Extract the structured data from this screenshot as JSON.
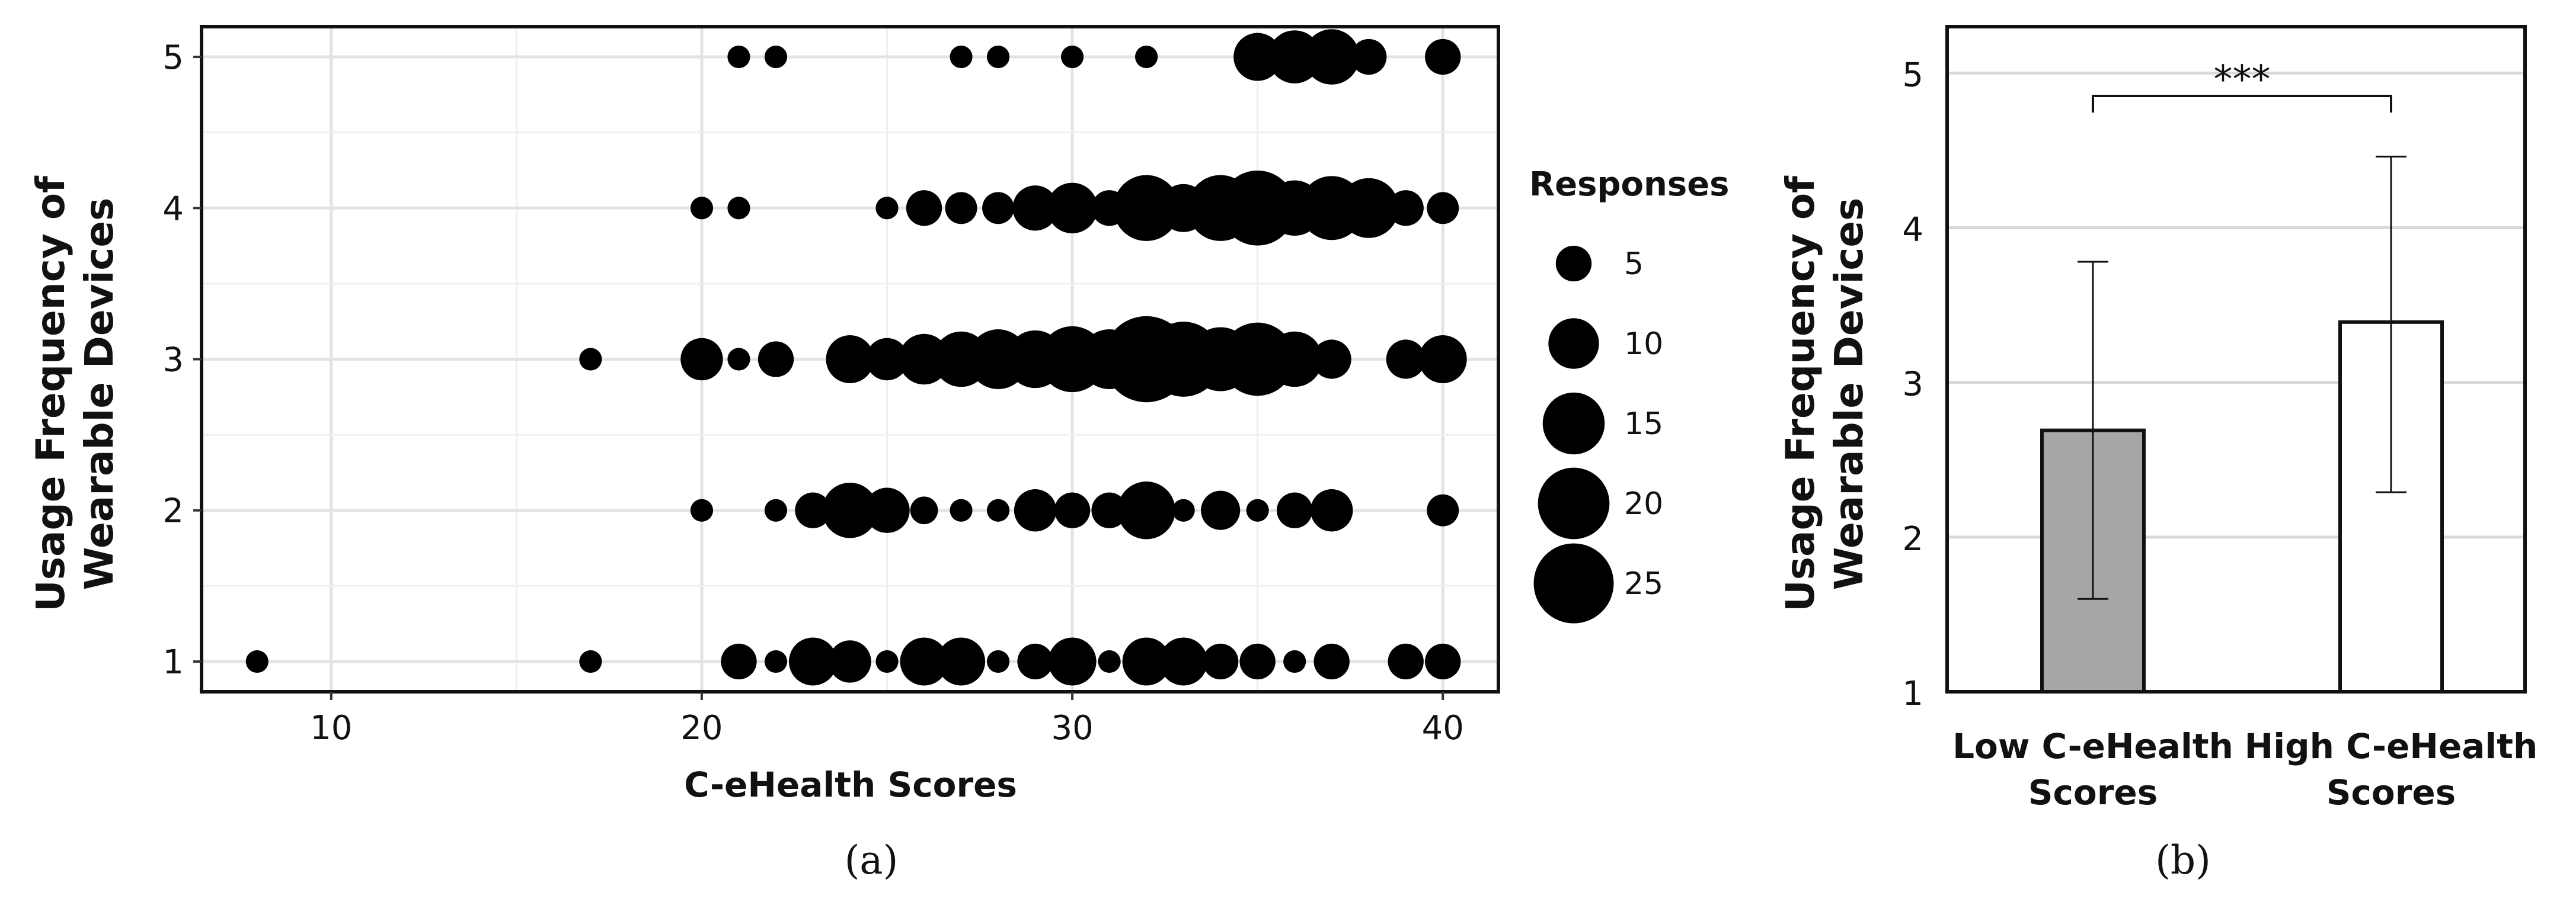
{
  "chart_data": [
    {
      "panel_label": "(a)",
      "type": "scatter",
      "xlabel": "C-eHealth Scores",
      "ylabel_lines": [
        "Usage Frequency of",
        "Wearable Devices"
      ],
      "xlim": [
        6.5,
        41.5
      ],
      "ylim": [
        0.8,
        5.2
      ],
      "xticks": [
        10,
        20,
        30,
        40
      ],
      "yticks": [
        1,
        2,
        3,
        4,
        5
      ],
      "grid": true,
      "legend": {
        "title": "Responses",
        "placement": "right",
        "sizes": [
          5,
          10,
          15,
          20,
          25
        ],
        "labels": [
          "5",
          "10",
          "15",
          "20",
          "25"
        ]
      },
      "points": [
        {
          "x": 21,
          "y": 5,
          "n": 2
        },
        {
          "x": 22,
          "y": 5,
          "n": 2
        },
        {
          "x": 27,
          "y": 5,
          "n": 2
        },
        {
          "x": 28,
          "y": 5,
          "n": 2
        },
        {
          "x": 30,
          "y": 5,
          "n": 2
        },
        {
          "x": 32,
          "y": 5,
          "n": 2
        },
        {
          "x": 35,
          "y": 5,
          "n": 9
        },
        {
          "x": 36,
          "y": 5,
          "n": 11
        },
        {
          "x": 37,
          "y": 5,
          "n": 12
        },
        {
          "x": 38,
          "y": 5,
          "n": 5
        },
        {
          "x": 40,
          "y": 5,
          "n": 5
        },
        {
          "x": 20,
          "y": 4,
          "n": 2
        },
        {
          "x": 21,
          "y": 4,
          "n": 2
        },
        {
          "x": 25,
          "y": 4,
          "n": 2
        },
        {
          "x": 26,
          "y": 4,
          "n": 5
        },
        {
          "x": 27,
          "y": 4,
          "n": 4
        },
        {
          "x": 28,
          "y": 4,
          "n": 4
        },
        {
          "x": 29,
          "y": 4,
          "n": 8
        },
        {
          "x": 30,
          "y": 4,
          "n": 10
        },
        {
          "x": 31,
          "y": 4,
          "n": 5
        },
        {
          "x": 32,
          "y": 4,
          "n": 17
        },
        {
          "x": 33,
          "y": 4,
          "n": 9
        },
        {
          "x": 34,
          "y": 4,
          "n": 17
        },
        {
          "x": 35,
          "y": 4,
          "n": 22
        },
        {
          "x": 36,
          "y": 4,
          "n": 12
        },
        {
          "x": 37,
          "y": 4,
          "n": 16
        },
        {
          "x": 38,
          "y": 4,
          "n": 14
        },
        {
          "x": 39,
          "y": 4,
          "n": 5
        },
        {
          "x": 40,
          "y": 4,
          "n": 4
        },
        {
          "x": 17,
          "y": 3,
          "n": 2
        },
        {
          "x": 20,
          "y": 3,
          "n": 7
        },
        {
          "x": 21,
          "y": 3,
          "n": 2
        },
        {
          "x": 22,
          "y": 3,
          "n": 5
        },
        {
          "x": 24,
          "y": 3,
          "n": 9
        },
        {
          "x": 25,
          "y": 3,
          "n": 7
        },
        {
          "x": 26,
          "y": 3,
          "n": 10
        },
        {
          "x": 27,
          "y": 3,
          "n": 12
        },
        {
          "x": 28,
          "y": 3,
          "n": 14
        },
        {
          "x": 29,
          "y": 3,
          "n": 13
        },
        {
          "x": 30,
          "y": 3,
          "n": 17
        },
        {
          "x": 31,
          "y": 3,
          "n": 14
        },
        {
          "x": 32,
          "y": 3,
          "n": 29
        },
        {
          "x": 33,
          "y": 3,
          "n": 22
        },
        {
          "x": 34,
          "y": 3,
          "n": 16
        },
        {
          "x": 35,
          "y": 3,
          "n": 21
        },
        {
          "x": 36,
          "y": 3,
          "n": 12
        },
        {
          "x": 37,
          "y": 3,
          "n": 6
        },
        {
          "x": 39,
          "y": 3,
          "n": 6
        },
        {
          "x": 40,
          "y": 3,
          "n": 9
        },
        {
          "x": 20,
          "y": 2,
          "n": 2
        },
        {
          "x": 22,
          "y": 2,
          "n": 2
        },
        {
          "x": 23,
          "y": 2,
          "n": 5
        },
        {
          "x": 24,
          "y": 2,
          "n": 12
        },
        {
          "x": 25,
          "y": 2,
          "n": 8
        },
        {
          "x": 26,
          "y": 2,
          "n": 3
        },
        {
          "x": 27,
          "y": 2,
          "n": 2
        },
        {
          "x": 28,
          "y": 2,
          "n": 2
        },
        {
          "x": 29,
          "y": 2,
          "n": 7
        },
        {
          "x": 30,
          "y": 2,
          "n": 5
        },
        {
          "x": 31,
          "y": 2,
          "n": 5
        },
        {
          "x": 32,
          "y": 2,
          "n": 13
        },
        {
          "x": 33,
          "y": 2,
          "n": 2
        },
        {
          "x": 34,
          "y": 2,
          "n": 6
        },
        {
          "x": 35,
          "y": 2,
          "n": 2
        },
        {
          "x": 36,
          "y": 2,
          "n": 5
        },
        {
          "x": 37,
          "y": 2,
          "n": 7
        },
        {
          "x": 40,
          "y": 2,
          "n": 4
        },
        {
          "x": 8,
          "y": 1,
          "n": 2
        },
        {
          "x": 17,
          "y": 1,
          "n": 2
        },
        {
          "x": 21,
          "y": 1,
          "n": 5
        },
        {
          "x": 22,
          "y": 1,
          "n": 2
        },
        {
          "x": 23,
          "y": 1,
          "n": 9
        },
        {
          "x": 24,
          "y": 1,
          "n": 7
        },
        {
          "x": 25,
          "y": 1,
          "n": 2
        },
        {
          "x": 26,
          "y": 1,
          "n": 9
        },
        {
          "x": 27,
          "y": 1,
          "n": 9
        },
        {
          "x": 28,
          "y": 1,
          "n": 2
        },
        {
          "x": 29,
          "y": 1,
          "n": 5
        },
        {
          "x": 30,
          "y": 1,
          "n": 9
        },
        {
          "x": 31,
          "y": 1,
          "n": 2
        },
        {
          "x": 32,
          "y": 1,
          "n": 9
        },
        {
          "x": 33,
          "y": 1,
          "n": 9
        },
        {
          "x": 34,
          "y": 1,
          "n": 5
        },
        {
          "x": 35,
          "y": 1,
          "n": 5
        },
        {
          "x": 36,
          "y": 1,
          "n": 2
        },
        {
          "x": 37,
          "y": 1,
          "n": 5
        },
        {
          "x": 39,
          "y": 1,
          "n": 5
        },
        {
          "x": 40,
          "y": 1,
          "n": 5
        }
      ]
    },
    {
      "panel_label": "(b)",
      "type": "bar",
      "ylabel_lines": [
        "Usage Frequency of",
        "Wearable Devices"
      ],
      "category_lines": [
        [
          "Low C-eHealth",
          "Scores"
        ],
        [
          "High C-eHealth",
          "Scores"
        ]
      ],
      "values": [
        2.69,
        3.39
      ],
      "error_low": [
        1.6,
        2.29
      ],
      "error_high": [
        3.78,
        4.46
      ],
      "bar_colors": [
        "#a6a6a6",
        "#ffffff"
      ],
      "ylim": [
        1,
        5.3
      ],
      "yticks": [
        1,
        2,
        3,
        4,
        5
      ],
      "grid": true,
      "significance": "***"
    }
  ]
}
